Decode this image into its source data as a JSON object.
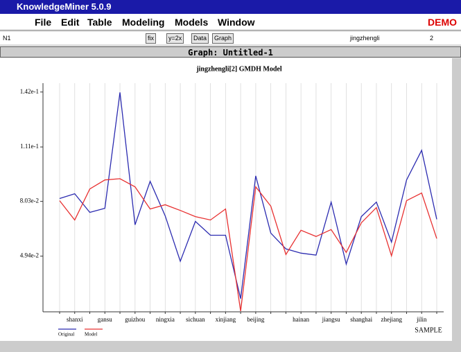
{
  "app": {
    "title": "KnowledgeMiner 5.0.9",
    "menu": [
      "File",
      "Edit",
      "Table",
      "Modeling",
      "Models",
      "Window"
    ],
    "demo": "DEMO"
  },
  "toolbar": {
    "node": "N1",
    "buttons": [
      "fix",
      "y=2x",
      "Data",
      "Graph"
    ],
    "variable": "jingzhengli",
    "count": "2"
  },
  "window": {
    "title": "Graph: Untitled-1"
  },
  "chart_data": {
    "type": "line",
    "title": "jingzhengli[2] GMDH Model",
    "x_label": "SAMPLE",
    "categories": [
      null,
      "shanxi",
      null,
      "gansu",
      null,
      "guizhou",
      null,
      "ningxia",
      null,
      "sichuan",
      null,
      "xinjiang",
      null,
      "beijing",
      null,
      null,
      "hainan",
      null,
      "jiangsu",
      null,
      "shanghai",
      null,
      "zhejiang",
      null,
      "jilin",
      null
    ],
    "series": [
      {
        "name": "Original",
        "color": "#2b2bb0",
        "values": [
          0.0819,
          0.0846,
          0.0741,
          0.0764,
          0.1418,
          0.0671,
          0.0916,
          0.0721,
          0.0465,
          0.069,
          0.0612,
          0.0612,
          0.0254,
          0.0947,
          0.0624,
          0.0535,
          0.0511,
          0.05,
          0.0799,
          0.0449,
          0.0717,
          0.0799,
          0.0573,
          0.0924,
          0.1091,
          0.0702
        ]
      },
      {
        "name": "Model",
        "color": "#e83030",
        "values": [
          0.0807,
          0.0698,
          0.0873,
          0.0924,
          0.0931,
          0.0885,
          0.076,
          0.0784,
          0.0752,
          0.0717,
          0.0698,
          0.076,
          0.0184,
          0.0885,
          0.0776,
          0.0503,
          0.064,
          0.0605,
          0.0644,
          0.0515,
          0.0682,
          0.0768,
          0.0496,
          0.0807,
          0.085,
          0.0593
        ]
      }
    ],
    "ylim": [
      0.018,
      0.147
    ],
    "yticks": [
      {
        "value": 0.0494,
        "label": "4.94e-2"
      },
      {
        "value": 0.0803,
        "label": "8.03e-2"
      },
      {
        "value": 0.111,
        "label": "1.11e-1"
      },
      {
        "value": 0.142,
        "label": "1.42e-1"
      }
    ],
    "grid": true
  }
}
